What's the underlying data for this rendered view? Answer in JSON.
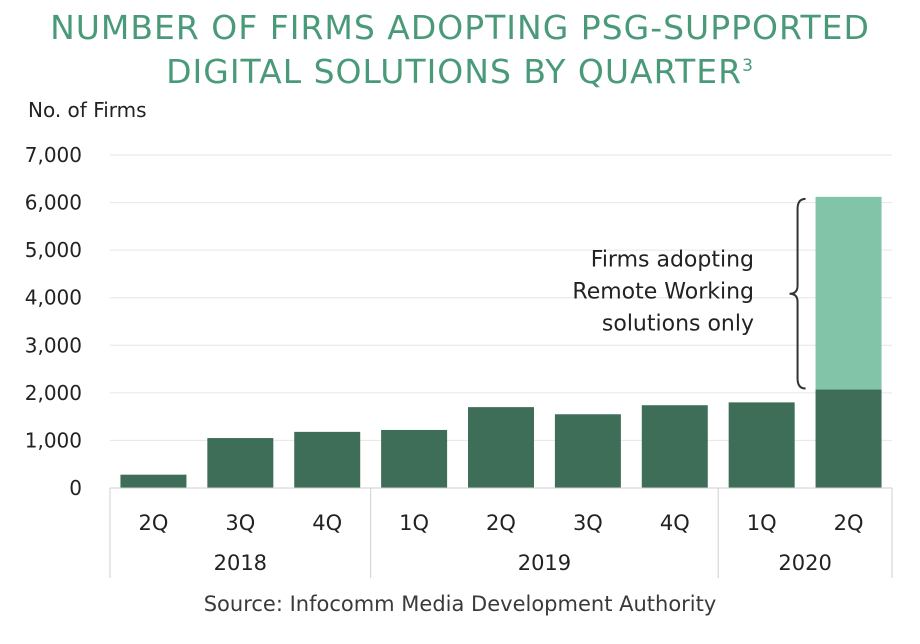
{
  "title": {
    "line1": "NUMBER OF FIRMS ADOPTING PSG-SUPPORTED",
    "line2": "DIGITAL SOLUTIONS BY QUARTER",
    "footnote": "3"
  },
  "source": "Source: Infocomm Media Development Authority",
  "colors": {
    "title": "#4a9a7a",
    "base_bar": "#3e6e58",
    "remote_bar": "#82c4a8",
    "grid": "#e6e6e6"
  },
  "chart_data": {
    "type": "bar",
    "stacked": true,
    "ylabel": "No. of Firms",
    "ylim": [
      0,
      7000
    ],
    "yticks": [
      0,
      1000,
      2000,
      3000,
      4000,
      5000,
      6000,
      7000
    ],
    "ytick_labels": [
      "0",
      "1,000",
      "2,000",
      "3,000",
      "4,000",
      "5,000",
      "6,000",
      "7,000"
    ],
    "grid": true,
    "categories": [
      "2Q",
      "3Q",
      "4Q",
      "1Q",
      "2Q",
      "3Q",
      "4Q",
      "1Q",
      "2Q"
    ],
    "groups": [
      {
        "label": "2018",
        "count": 3
      },
      {
        "label": "2019",
        "count": 4
      },
      {
        "label": "2020",
        "count": 2
      }
    ],
    "series": [
      {
        "values": [
          280,
          1050,
          1180,
          1220,
          1700,
          1550,
          1740,
          1800,
          2070
        ]
      },
      {
        "name": "Firms adopting Remote Working solutions only",
        "values": [
          0,
          0,
          0,
          0,
          0,
          0,
          0,
          0,
          4050
        ]
      }
    ],
    "annotation": {
      "lines": [
        "Firms adopting",
        "Remote Working",
        "solutions only"
      ]
    }
  }
}
